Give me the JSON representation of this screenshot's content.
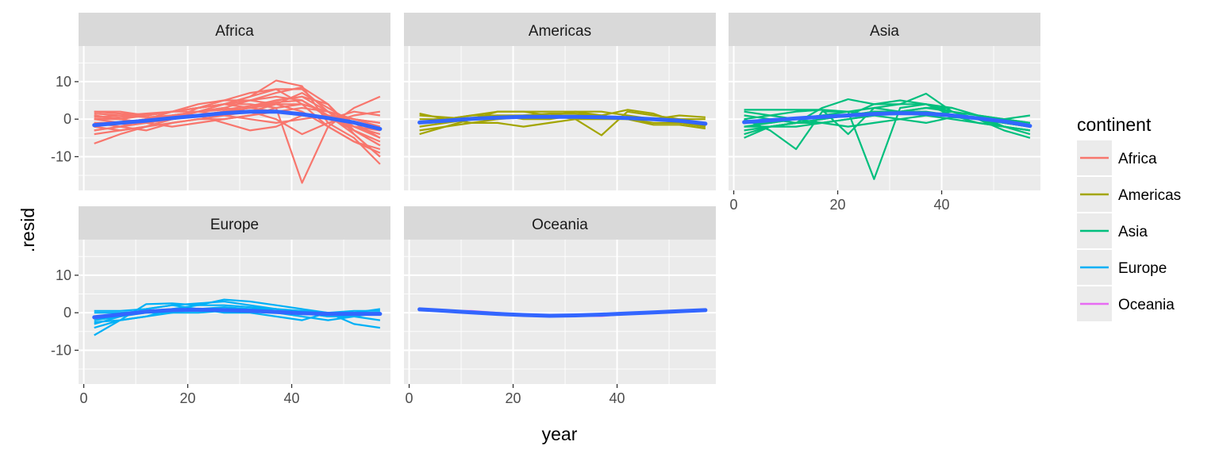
{
  "chart_data": {
    "type": "line",
    "facet_by": "continent",
    "xlabel": "year",
    "ylabel": ".resid",
    "xlim": [
      -1,
      59
    ],
    "ylim": [
      -19,
      19.5
    ],
    "x_ticks": [
      0,
      20,
      40
    ],
    "y_ticks": [
      10,
      0,
      -10
    ],
    "x_tick_labels": [
      "0",
      "20",
      "40"
    ],
    "y_tick_labels": [
      "10",
      "0",
      "-10"
    ],
    "x_years": [
      2,
      7,
      12,
      17,
      22,
      27,
      32,
      37,
      42,
      47,
      52,
      57
    ],
    "legend": {
      "title": "continent",
      "position": "right",
      "entries": [
        "Africa",
        "Americas",
        "Asia",
        "Europe",
        "Oceania"
      ]
    },
    "colors": {
      "Africa": "#F8766D",
      "Americas": "#A3A500",
      "Asia": "#00BF7D",
      "Europe": "#00B0F6",
      "Oceania": "#E76BF3",
      "smooth": "#3366FF",
      "panel_bg": "#EBEBEB",
      "strip_bg": "#D9D9D9",
      "grid": "#FFFFFF"
    },
    "facets": [
      {
        "name": "Africa",
        "smooth": [
          -1.6,
          -1.0,
          -0.4,
          0.3,
          0.9,
          1.6,
          2.0,
          2.0,
          1.3,
          0.3,
          -0.9,
          -2.6
        ],
        "series": [
          [
            2.0,
            1.5,
            1.0,
            2.0,
            3.0,
            4.0,
            6.0,
            8.0,
            8.0,
            2.0,
            -3.0,
            -6.0
          ],
          [
            -3.0,
            -2.0,
            -1.0,
            0.0,
            2.0,
            3.0,
            5.0,
            7.0,
            8.5,
            4.0,
            -4.0,
            -10.0
          ],
          [
            -6.5,
            -4.0,
            -2.0,
            0.0,
            1.0,
            2.0,
            3.0,
            4.5,
            5.0,
            0.5,
            -3.0,
            -7.0
          ],
          [
            -2.0,
            -1.0,
            0.0,
            1.0,
            2.0,
            4.0,
            6.0,
            10.3,
            8.8,
            -1.0,
            -5.0,
            -12.0
          ],
          [
            0.0,
            0.5,
            1.0,
            2.0,
            3.0,
            4.0,
            4.0,
            3.0,
            -17.0,
            -2.0,
            3.0,
            6.0
          ],
          [
            1.0,
            0.0,
            -1.0,
            0.0,
            1.0,
            2.0,
            3.0,
            4.0,
            4.0,
            2.0,
            0.0,
            -2.0
          ],
          [
            -1.0,
            -2.0,
            -3.0,
            -1.0,
            0.0,
            1.0,
            2.0,
            4.0,
            7.0,
            3.0,
            -1.0,
            -5.0
          ],
          [
            2.0,
            2.0,
            1.0,
            2.0,
            4.0,
            5.0,
            5.0,
            4.0,
            2.0,
            -2.0,
            -6.0,
            -8.0
          ],
          [
            -4.0,
            -3.0,
            -2.0,
            -1.0,
            0.0,
            0.0,
            1.0,
            2.0,
            3.0,
            2.0,
            0.0,
            -1.0
          ],
          [
            0.5,
            1.0,
            1.5,
            2.0,
            3.0,
            4.0,
            5.0,
            6.0,
            5.0,
            1.0,
            -4.0,
            -10.0
          ],
          [
            -2.0,
            -1.0,
            0.0,
            1.0,
            2.0,
            3.0,
            2.0,
            0.0,
            -4.0,
            -1.0,
            1.0,
            2.0
          ],
          [
            1.0,
            0.0,
            -1.0,
            -2.0,
            -1.0,
            0.0,
            1.0,
            3.0,
            4.0,
            2.0,
            -2.0,
            -3.0
          ],
          [
            -1.0,
            -1.0,
            0.0,
            1.0,
            1.0,
            2.0,
            3.0,
            5.0,
            6.0,
            4.0,
            -3.0,
            -7.0
          ],
          [
            0.0,
            0.0,
            1.0,
            2.0,
            2.0,
            1.0,
            0.0,
            -1.0,
            0.0,
            1.0,
            0.0,
            -1.0
          ],
          [
            -3.0,
            -2.0,
            0.0,
            2.0,
            3.0,
            4.0,
            3.0,
            2.0,
            1.0,
            0.0,
            -2.0,
            -4.0
          ],
          [
            1.5,
            1.0,
            0.5,
            1.0,
            2.0,
            2.5,
            3.5,
            5.0,
            6.0,
            2.0,
            -2.0,
            -5.0
          ],
          [
            -2.0,
            -3.0,
            -2.0,
            0.0,
            1.0,
            -1.0,
            -3.0,
            -2.0,
            1.0,
            0.0,
            2.0,
            1.0
          ],
          [
            0.0,
            -1.0,
            -1.0,
            0.0,
            3.0,
            5.0,
            7.0,
            8.0,
            4.0,
            -2.0,
            -6.0,
            -9.0
          ]
        ]
      },
      {
        "name": "Americas",
        "smooth": [
          -0.9,
          -0.4,
          0.1,
          0.4,
          0.6,
          0.6,
          0.6,
          0.5,
          0.3,
          0.0,
          -0.4,
          -1.2
        ],
        "series": [
          [
            1.5,
            0.0,
            -1.0,
            -1.0,
            -2.0,
            -1.0,
            0.0,
            -4.3,
            2.0,
            1.0,
            0.0,
            -2.0
          ],
          [
            -4.0,
            -2.0,
            0.0,
            2.0,
            2.0,
            2.0,
            2.0,
            1.0,
            0.0,
            -1.0,
            -1.0,
            -2.0
          ],
          [
            -2.0,
            -1.0,
            0.0,
            1.0,
            1.0,
            1.0,
            2.0,
            2.0,
            1.0,
            0.0,
            -1.0,
            -1.5
          ],
          [
            0.0,
            0.0,
            1.0,
            1.0,
            0.0,
            0.0,
            1.0,
            1.0,
            2.5,
            1.5,
            -1.0,
            -2.0
          ],
          [
            -1.0,
            0.0,
            1.0,
            2.0,
            2.0,
            1.0,
            0.0,
            0.0,
            0.0,
            0.0,
            1.0,
            0.5
          ],
          [
            -3.0,
            -2.0,
            -1.0,
            0.0,
            1.0,
            1.5,
            1.5,
            1.0,
            0.0,
            -1.5,
            -1.5,
            -2.5
          ],
          [
            1.0,
            0.5,
            0.0,
            0.0,
            0.5,
            1.0,
            1.0,
            0.5,
            0.0,
            0.0,
            0.0,
            0.0
          ]
        ]
      },
      {
        "name": "Asia",
        "smooth": [
          -0.8,
          -0.3,
          0.2,
          0.6,
          1.0,
          1.4,
          1.6,
          1.5,
          1.0,
          0.2,
          -0.6,
          -1.8
        ],
        "series": [
          [
            2.5,
            2.5,
            2.5,
            2.5,
            2.0,
            1.0,
            0.0,
            -1.0,
            0.5,
            0.0,
            -1.0,
            -2.0
          ],
          [
            -5.0,
            -2.0,
            -1.0,
            3.0,
            5.3,
            4.0,
            4.0,
            6.8,
            2.0,
            0.0,
            -3.0,
            -5.0
          ],
          [
            0.0,
            -3.0,
            -8.0,
            2.0,
            2.0,
            -16.0,
            3.0,
            4.0,
            1.0,
            -1.0,
            -2.0,
            -3.0
          ],
          [
            -2.0,
            -1.0,
            0.0,
            1.0,
            2.0,
            3.0,
            4.0,
            4.0,
            3.0,
            1.0,
            -2.0,
            -4.0
          ],
          [
            -4.0,
            -2.0,
            -1.0,
            0.0,
            1.0,
            2.0,
            2.0,
            3.0,
            3.0,
            1.0,
            0.0,
            1.0
          ],
          [
            1.0,
            0.0,
            -1.0,
            -1.0,
            0.0,
            1.0,
            2.0,
            3.0,
            2.0,
            0.0,
            -1.0,
            -2.0
          ],
          [
            -1.0,
            -1.0,
            0.0,
            1.0,
            1.0,
            2.0,
            2.0,
            1.5,
            1.0,
            0.5,
            0.0,
            -1.0
          ],
          [
            0.0,
            1.0,
            2.0,
            2.5,
            -4.0,
            3.0,
            2.0,
            1.0,
            0.0,
            -1.0,
            -2.0,
            -3.0
          ],
          [
            -2.0,
            -2.0,
            -1.0,
            0.0,
            1.0,
            4.0,
            5.0,
            4.0,
            2.0,
            0.0,
            -2.0,
            -3.0
          ],
          [
            2.0,
            1.0,
            0.0,
            -1.0,
            -2.0,
            -1.0,
            0.0,
            1.0,
            2.0,
            1.0,
            0.0,
            -1.0
          ],
          [
            -3.0,
            -2.0,
            -2.0,
            -1.0,
            0.0,
            1.0,
            2.0,
            2.0,
            1.0,
            0.0,
            -1.0,
            -2.0
          ]
        ]
      },
      {
        "name": "Europe",
        "smooth": [
          -1.2,
          -0.5,
          0.3,
          0.7,
          0.8,
          0.7,
          0.5,
          0.2,
          -0.1,
          -0.3,
          -0.3,
          -0.3
        ],
        "series": [
          [
            -6.0,
            -2.0,
            2.3,
            2.5,
            2.0,
            3.5,
            3.0,
            2.0,
            1.0,
            0.0,
            -3.0,
            -4.0
          ],
          [
            -4.0,
            -2.0,
            -1.0,
            1.0,
            2.0,
            2.0,
            1.5,
            1.0,
            0.0,
            -1.0,
            -1.0,
            -2.0
          ],
          [
            -3.0,
            -1.0,
            1.0,
            2.0,
            1.0,
            0.0,
            0.0,
            -1.0,
            -2.0,
            0.0,
            0.5,
            0.5
          ],
          [
            0.5,
            0.5,
            1.0,
            2.0,
            2.5,
            3.0,
            2.0,
            1.0,
            0.0,
            -1.0,
            -0.5,
            0.0
          ],
          [
            -2.0,
            -1.0,
            0.0,
            0.0,
            1.0,
            1.0,
            1.0,
            0.0,
            -1.0,
            -2.0,
            -1.0,
            0.0
          ],
          [
            0.0,
            0.0,
            0.5,
            1.0,
            1.0,
            1.5,
            1.0,
            1.0,
            0.5,
            0.0,
            0.0,
            1.0
          ],
          [
            -2.5,
            -2.0,
            -1.0,
            0.0,
            0.0,
            0.5,
            0.5,
            0.0,
            0.0,
            0.0,
            0.0,
            0.0
          ]
        ]
      },
      {
        "name": "Oceania",
        "smooth": [
          0.9,
          0.5,
          0.1,
          -0.3,
          -0.6,
          -0.8,
          -0.7,
          -0.5,
          -0.2,
          0.1,
          0.4,
          0.7
        ],
        "series": [
          [
            1.0,
            0.6,
            0.3,
            -0.2,
            -0.6,
            -0.8,
            -0.6,
            -0.4,
            -0.2,
            0.1,
            0.4,
            0.8
          ],
          [
            0.9,
            0.5,
            0.5,
            0.0,
            -0.5,
            -1.0,
            -0.8,
            -0.9,
            -0.3,
            0.1,
            0.5,
            0.9
          ]
        ]
      }
    ]
  }
}
